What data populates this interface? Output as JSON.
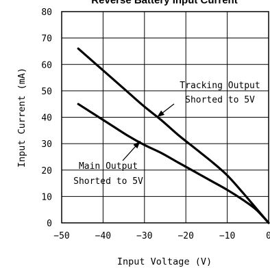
{
  "chart_data": {
    "type": "line",
    "title": "Reverse Battery Input Current",
    "xlabel": "Input Voltage (V)",
    "ylabel": "Input Current (mA)",
    "xlim": [
      -50,
      0
    ],
    "ylim": [
      0,
      80
    ],
    "x_ticks": [
      -50,
      -40,
      -30,
      -20,
      -10,
      0
    ],
    "x_tick_labels": [
      "−50",
      "−40",
      "−30",
      "−20",
      "−10",
      "0"
    ],
    "y_ticks": [
      0,
      10,
      20,
      30,
      40,
      50,
      60,
      70,
      80
    ],
    "y_tick_labels": [
      "0",
      "10",
      "20",
      "30",
      "40",
      "50",
      "60",
      "70",
      "80"
    ],
    "grid": true,
    "series": [
      {
        "name": "Tracking Output Shorted to 5V",
        "x": [
          -46,
          -42,
          -38,
          -34,
          -30,
          -26,
          -22,
          -18,
          -14,
          -10,
          -6,
          -3,
          0
        ],
        "y": [
          66,
          60.5,
          55,
          49.5,
          44,
          39,
          33.5,
          28.5,
          23.5,
          18,
          11,
          5.5,
          0
        ]
      },
      {
        "name": "Main Output Shorted to 5V",
        "x": [
          -46,
          -42,
          -38,
          -34,
          -30,
          -26,
          -22,
          -18,
          -14,
          -10,
          -6,
          -3,
          0
        ],
        "y": [
          45,
          41,
          37,
          33,
          29.5,
          26.5,
          23,
          19.5,
          16,
          12.5,
          8.5,
          5,
          0
        ]
      }
    ],
    "annotations": [
      {
        "lines": [
          "Tracking Output",
          "Shorted to 5V"
        ],
        "arrow_to": [
          -27,
          40
        ]
      },
      {
        "lines": [
          "Main Output",
          "Shorted to 5V"
        ],
        "arrow_to": [
          -31,
          31
        ]
      }
    ]
  }
}
